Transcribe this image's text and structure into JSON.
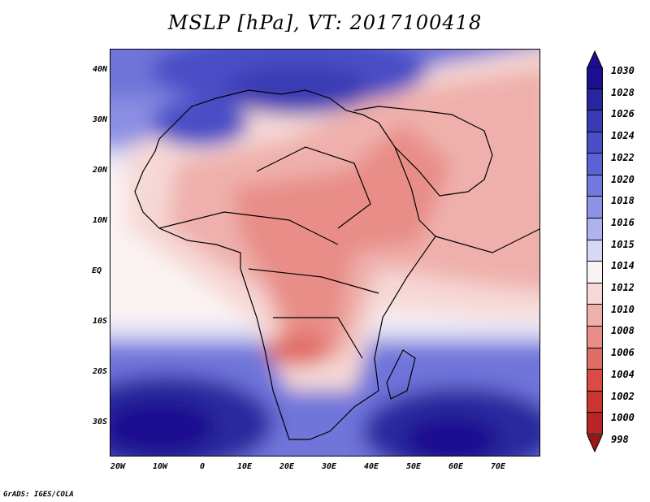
{
  "title": "MSLP [hPa], VT: 2017100418",
  "credit": "GrADS: IGES/COLA",
  "y_axis_labels": [
    "40N",
    "30N",
    "20N",
    "10N",
    "EQ",
    "10S",
    "20S",
    "30S"
  ],
  "x_axis_labels": [
    "20W",
    "10W",
    "0",
    "10E",
    "20E",
    "30E",
    "40E",
    "50E",
    "60E",
    "70E"
  ],
  "colorbar": {
    "labels": [
      "1030",
      "1028",
      "1026",
      "1024",
      "1022",
      "1020",
      "1018",
      "1016",
      "1015",
      "1014",
      "1012",
      "1010",
      "1008",
      "1006",
      "1004",
      "1002",
      "1000",
      "998"
    ],
    "colors": [
      "#1c0f8f",
      "#27269f",
      "#3a3bb4",
      "#4a4ec6",
      "#5b62d4",
      "#7378dc",
      "#8d92e4",
      "#aeb2ee",
      "#d6d8f6",
      "#fbf3f3",
      "#f6d8d6",
      "#efb0ac",
      "#e88d88",
      "#e06c66",
      "#d94b44",
      "#cc3631",
      "#b92424",
      "#a01515"
    ]
  }
}
